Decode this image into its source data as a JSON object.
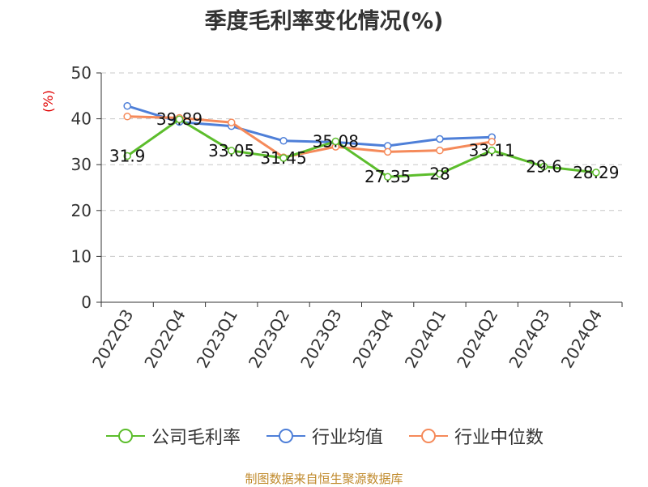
{
  "title": "季度毛利率变化情况(%)",
  "unit_label": "(%)",
  "footer": "制图数据来自恒生聚源数据库",
  "chart_data": {
    "type": "line",
    "title": "季度毛利率变化情况(%)",
    "ylabel": "(%)",
    "xlabel": "",
    "categories": [
      "2022Q3",
      "2022Q4",
      "2023Q1",
      "2023Q2",
      "2023Q3",
      "2023Q4",
      "2024Q1",
      "2024Q2",
      "2024Q3",
      "2024Q4"
    ],
    "ylim": [
      0,
      50
    ],
    "yticks": [
      0,
      10,
      20,
      30,
      40,
      50
    ],
    "grid": true,
    "legend_position": "bottom",
    "series": [
      {
        "name": "公司毛利率",
        "color": "#5cbd2c",
        "values": [
          31.9,
          39.89,
          33.05,
          31.45,
          35.08,
          27.35,
          28,
          33.11,
          29.6,
          28.29
        ],
        "labels": [
          "31.9",
          "39.89",
          "33.05",
          "31.45",
          "35.08",
          "27.35",
          "28",
          "33.11",
          "29.6",
          "28.29"
        ]
      },
      {
        "name": "行业均值",
        "color": "#4e7fd8",
        "values": [
          42.8,
          39.3,
          38.4,
          35.2,
          34.9,
          34.1,
          35.6,
          36.0,
          null,
          null
        ]
      },
      {
        "name": "行业中位数",
        "color": "#f58a5a",
        "values": [
          40.5,
          40.2,
          39.2,
          31.6,
          33.9,
          32.8,
          33.1,
          35.0,
          null,
          null
        ]
      }
    ]
  }
}
